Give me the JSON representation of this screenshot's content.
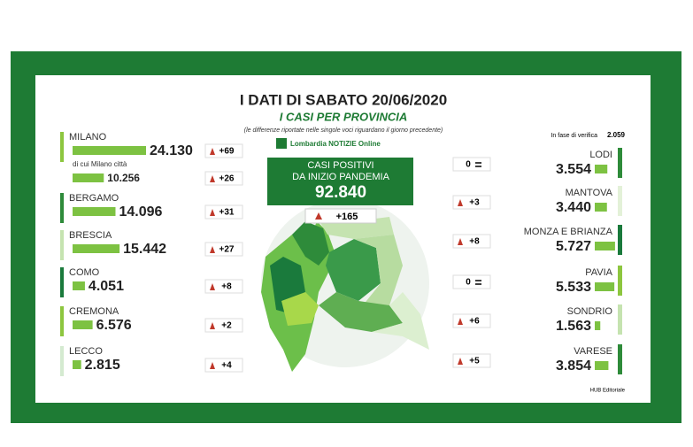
{
  "header": {
    "title": "I DATI DI SABATO 20/06/2020",
    "subtitle": "I CASI PER PROVINCIA",
    "note": "(le differenze riportate nelle singole voci riguardano il giorno precedente)",
    "logo": "Lombardia NOTIZIE Online"
  },
  "total": {
    "label_1": "CASI POSITIVI",
    "label_2": "DA INIZIO PANDEMIA",
    "value": "92.840",
    "change": "+165"
  },
  "left": [
    {
      "name": "MILANO",
      "value": 24130,
      "label": "24.130",
      "change": "+69",
      "trend": "up",
      "color": "#8dc63f"
    },
    {
      "name": "di cui Milano città",
      "value": 10256,
      "label": "10.256",
      "change": "+26",
      "trend": "up",
      "color": "#ffffff"
    },
    {
      "name": "BERGAMO",
      "value": 14096,
      "label": "14.096",
      "change": "+31",
      "trend": "up",
      "color": "#2e8b3a"
    },
    {
      "name": "BRESCIA",
      "value": 15442,
      "label": "15.442",
      "change": "+27",
      "trend": "up",
      "color": "#c5e3b0"
    },
    {
      "name": "COMO",
      "value": 4051,
      "label": "4.051",
      "change": "+8",
      "trend": "up",
      "color": "#1a7a3c"
    },
    {
      "name": "CREMONA",
      "value": 6576,
      "label": "6.576",
      "change": "+2",
      "trend": "up",
      "color": "#8dc63f"
    },
    {
      "name": "LECCO",
      "value": 2815,
      "label": "2.815",
      "change": "+4",
      "trend": "up",
      "color": "#d4ead0"
    }
  ],
  "verifica": {
    "label": "In fase di verifica",
    "value": "2.059"
  },
  "right": [
    {
      "name": "LODI",
      "value": 3554,
      "label": "3.554",
      "change": "0",
      "trend": "same",
      "color": "#2e8b3a"
    },
    {
      "name": "MANTOVA",
      "value": 3440,
      "label": "3.440",
      "change": "+3",
      "trend": "up",
      "color": "#e3f1d8"
    },
    {
      "name": "MONZA E BRIANZA",
      "value": 5727,
      "label": "5.727",
      "change": "+8",
      "trend": "up",
      "color": "#1a7a3c"
    },
    {
      "name": "PAVIA",
      "value": 5533,
      "label": "5.533",
      "change": "0",
      "trend": "same",
      "color": "#8dc63f"
    },
    {
      "name": "SONDRIO",
      "value": 1563,
      "label": "1.563",
      "change": "+6",
      "trend": "up",
      "color": "#c5e3b0"
    },
    {
      "name": "VARESE",
      "value": 3854,
      "label": "3.854",
      "change": "+5",
      "trend": "up",
      "color": "#2e8b3a"
    }
  ],
  "footer": "HUB Editoriale"
}
